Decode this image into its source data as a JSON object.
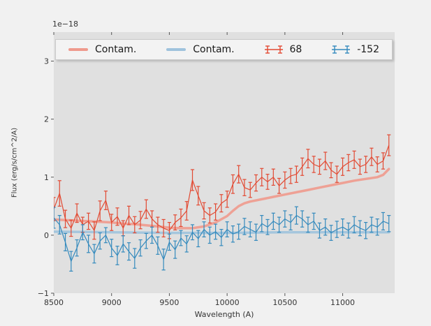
{
  "figure": {
    "background": "#f1f1f1",
    "axes_background": "#e0e0e0",
    "tick_color": "#555555",
    "label_color": "#333333"
  },
  "chart_data": {
    "type": "line",
    "title": "",
    "offset_text": "1e−18",
    "xlabel": "Wavelength (A)",
    "ylabel": "Flux (erg/s/cm^2/A)",
    "xlim": [
      8500,
      11450
    ],
    "ylim": [
      -1,
      3.5
    ],
    "xticks": [
      8500,
      9000,
      9500,
      10000,
      10500,
      11000
    ],
    "xtick_labels": [
      "8500",
      "9000",
      "9500",
      "10000",
      "10500",
      "11000"
    ],
    "yticks": [
      -1,
      0,
      1,
      2,
      3
    ],
    "ytick_labels": [
      "−1",
      "0",
      "1",
      "2",
      "3"
    ],
    "grid": false,
    "legend_position": "top",
    "legend": [
      {
        "label": "Contam.",
        "type": "line",
        "color": "#ef9a8d"
      },
      {
        "label": "Contam.",
        "type": "line",
        "color": "#9fc3dd"
      },
      {
        "label": "68",
        "type": "errorbar",
        "color": "#e24a33"
      },
      {
        "label": "-152",
        "type": "errorbar",
        "color": "#348abd"
      }
    ],
    "series": [
      {
        "name": "contam-red-model",
        "type": "line",
        "color": "#ef9a8d",
        "width": 3.5,
        "opacity": 0.9,
        "x": [
          8500,
          8600,
          8700,
          8800,
          8900,
          9000,
          9100,
          9200,
          9300,
          9400,
          9500,
          9600,
          9700,
          9800,
          9900,
          10000,
          10050,
          10100,
          10150,
          10200,
          10300,
          10400,
          10500,
          10600,
          10700,
          10800,
          10900,
          11000,
          11100,
          11200,
          11300,
          11350,
          11400
        ],
        "y": [
          0.27,
          0.26,
          0.25,
          0.24,
          0.23,
          0.22,
          0.2,
          0.19,
          0.17,
          0.15,
          0.13,
          0.12,
          0.12,
          0.15,
          0.22,
          0.33,
          0.42,
          0.5,
          0.55,
          0.58,
          0.62,
          0.66,
          0.7,
          0.74,
          0.78,
          0.82,
          0.86,
          0.9,
          0.94,
          0.97,
          1.0,
          1.04,
          1.14
        ]
      },
      {
        "name": "contam-blue-model",
        "type": "line",
        "color": "#9fc3dd",
        "width": 3.5,
        "opacity": 0.9,
        "x": [
          8500,
          9000,
          9500,
          10000,
          10500,
          11000,
          11400
        ],
        "y": [
          0.06,
          0.05,
          0.04,
          0.04,
          0.05,
          0.05,
          0.05
        ]
      },
      {
        "name": "68",
        "type": "errorbar",
        "color": "#e24a33",
        "width": 1.2,
        "x": [
          8500,
          8550,
          8600,
          8650,
          8700,
          8750,
          8800,
          8850,
          8900,
          8950,
          9000,
          9050,
          9100,
          9150,
          9200,
          9250,
          9300,
          9350,
          9400,
          9450,
          9500,
          9550,
          9600,
          9650,
          9700,
          9750,
          9800,
          9850,
          9900,
          9950,
          10000,
          10050,
          10100,
          10150,
          10200,
          10250,
          10300,
          10350,
          10400,
          10450,
          10500,
          10550,
          10600,
          10650,
          10700,
          10750,
          10800,
          10850,
          10900,
          10950,
          11000,
          11050,
          11100,
          11150,
          11200,
          11250,
          11300,
          11350,
          11400
        ],
        "y": [
          0.45,
          0.72,
          0.28,
          0.12,
          0.38,
          0.18,
          0.24,
          0.08,
          0.42,
          0.6,
          0.22,
          0.32,
          0.12,
          0.34,
          0.18,
          0.26,
          0.45,
          0.28,
          0.18,
          0.12,
          0.08,
          0.22,
          0.3,
          0.42,
          0.95,
          0.68,
          0.42,
          0.34,
          0.4,
          0.55,
          0.62,
          0.88,
          1.05,
          0.82,
          0.78,
          0.9,
          1.0,
          0.92,
          1.0,
          0.85,
          0.95,
          1.02,
          1.05,
          1.18,
          1.32,
          1.22,
          1.18,
          1.28,
          1.12,
          1.05,
          1.18,
          1.25,
          1.3,
          1.18,
          1.22,
          1.35,
          1.22,
          1.28,
          1.55
        ],
        "yerr": [
          0.2,
          0.22,
          0.15,
          0.14,
          0.16,
          0.13,
          0.14,
          0.15,
          0.17,
          0.16,
          0.14,
          0.15,
          0.13,
          0.16,
          0.14,
          0.15,
          0.16,
          0.14,
          0.13,
          0.15,
          0.14,
          0.13,
          0.15,
          0.16,
          0.18,
          0.16,
          0.14,
          0.13,
          0.14,
          0.15,
          0.14,
          0.16,
          0.15,
          0.14,
          0.13,
          0.14,
          0.15,
          0.13,
          0.14,
          0.13,
          0.14,
          0.13,
          0.14,
          0.15,
          0.16,
          0.14,
          0.13,
          0.15,
          0.13,
          0.14,
          0.15,
          0.14,
          0.15,
          0.13,
          0.14,
          0.15,
          0.13,
          0.14,
          0.18
        ]
      },
      {
        "name": "-152",
        "type": "errorbar",
        "color": "#348abd",
        "width": 1.2,
        "x": [
          8500,
          8550,
          8600,
          8650,
          8700,
          8750,
          8800,
          8850,
          8900,
          8950,
          9000,
          9050,
          9100,
          9150,
          9200,
          9250,
          9300,
          9350,
          9400,
          9450,
          9500,
          9550,
          9600,
          9650,
          9700,
          9750,
          9800,
          9850,
          9900,
          9950,
          10000,
          10050,
          10100,
          10150,
          10200,
          10250,
          10300,
          10350,
          10400,
          10450,
          10500,
          10550,
          10600,
          10650,
          10700,
          10750,
          10800,
          10850,
          10900,
          10950,
          11000,
          11050,
          11100,
          11150,
          11200,
          11250,
          11300,
          11350,
          11400
        ],
        "y": [
          0.3,
          0.18,
          -0.12,
          -0.45,
          -0.22,
          0.05,
          -0.15,
          -0.32,
          -0.1,
          0.0,
          -0.22,
          -0.35,
          -0.15,
          -0.28,
          -0.4,
          -0.22,
          -0.1,
          0.0,
          -0.18,
          -0.42,
          -0.12,
          -0.25,
          -0.05,
          -0.15,
          0.05,
          -0.06,
          0.1,
          0.0,
          0.06,
          -0.04,
          0.1,
          0.02,
          0.06,
          0.15,
          0.1,
          0.05,
          0.2,
          0.14,
          0.24,
          0.18,
          0.28,
          0.22,
          0.34,
          0.28,
          0.18,
          0.24,
          0.08,
          0.14,
          0.04,
          0.1,
          0.14,
          0.08,
          0.18,
          0.12,
          0.08,
          0.18,
          0.14,
          0.24,
          0.2
        ],
        "yerr": [
          0.18,
          0.16,
          0.15,
          0.17,
          0.14,
          0.13,
          0.15,
          0.16,
          0.14,
          0.13,
          0.15,
          0.16,
          0.14,
          0.15,
          0.17,
          0.14,
          0.13,
          0.14,
          0.15,
          0.18,
          0.14,
          0.15,
          0.13,
          0.14,
          0.13,
          0.14,
          0.13,
          0.14,
          0.13,
          0.14,
          0.13,
          0.14,
          0.13,
          0.14,
          0.13,
          0.14,
          0.14,
          0.13,
          0.14,
          0.13,
          0.14,
          0.13,
          0.15,
          0.14,
          0.13,
          0.14,
          0.13,
          0.14,
          0.13,
          0.14,
          0.14,
          0.13,
          0.14,
          0.13,
          0.14,
          0.13,
          0.14,
          0.15,
          0.14
        ]
      }
    ]
  }
}
